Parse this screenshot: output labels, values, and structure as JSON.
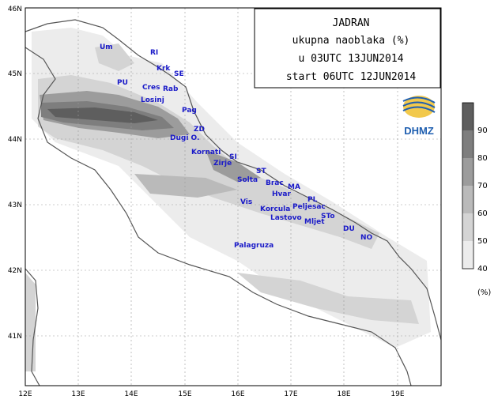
{
  "title_box": {
    "line1": "JADRAN",
    "line2": "ukupna naoblaka (%)",
    "line3": "u 03UTC 13JUN2014",
    "line4": "start 06UTC 12JUN2014"
  },
  "logo": {
    "text": "DHMZ",
    "color": "#1f5fb0"
  },
  "axes": {
    "lon_labels": [
      "12E",
      "13E",
      "14E",
      "15E",
      "16E",
      "17E",
      "18E",
      "19E"
    ],
    "lat_labels": [
      "46N",
      "45N",
      "44N",
      "43N",
      "42N",
      "41N"
    ]
  },
  "places": [
    {
      "name": "Um"
    },
    {
      "name": "RI"
    },
    {
      "name": "Krk"
    },
    {
      "name": "SE"
    },
    {
      "name": "PU"
    },
    {
      "name": "Cres"
    },
    {
      "name": "Rab"
    },
    {
      "name": "Losinj"
    },
    {
      "name": "Pag"
    },
    {
      "name": "ZD"
    },
    {
      "name": "Dugi O."
    },
    {
      "name": "Kornati"
    },
    {
      "name": "SI"
    },
    {
      "name": "Zirje"
    },
    {
      "name": "ST"
    },
    {
      "name": "Solta"
    },
    {
      "name": "Brac"
    },
    {
      "name": "MA"
    },
    {
      "name": "Hvar"
    },
    {
      "name": "PL"
    },
    {
      "name": "Vis"
    },
    {
      "name": "Korcula"
    },
    {
      "name": "Peljesac"
    },
    {
      "name": "Lastovo"
    },
    {
      "name": "STo"
    },
    {
      "name": "Mljet"
    },
    {
      "name": "DU"
    },
    {
      "name": "NO"
    },
    {
      "name": "Palagruza"
    }
  ],
  "legend": {
    "levels": [
      "90",
      "80",
      "70",
      "60",
      "50",
      "40"
    ],
    "colors": [
      "#5e5e5e",
      "#7e7e7e",
      "#9c9c9c",
      "#bababa",
      "#d4d4d4",
      "#ececec"
    ],
    "unit": "(%)"
  }
}
